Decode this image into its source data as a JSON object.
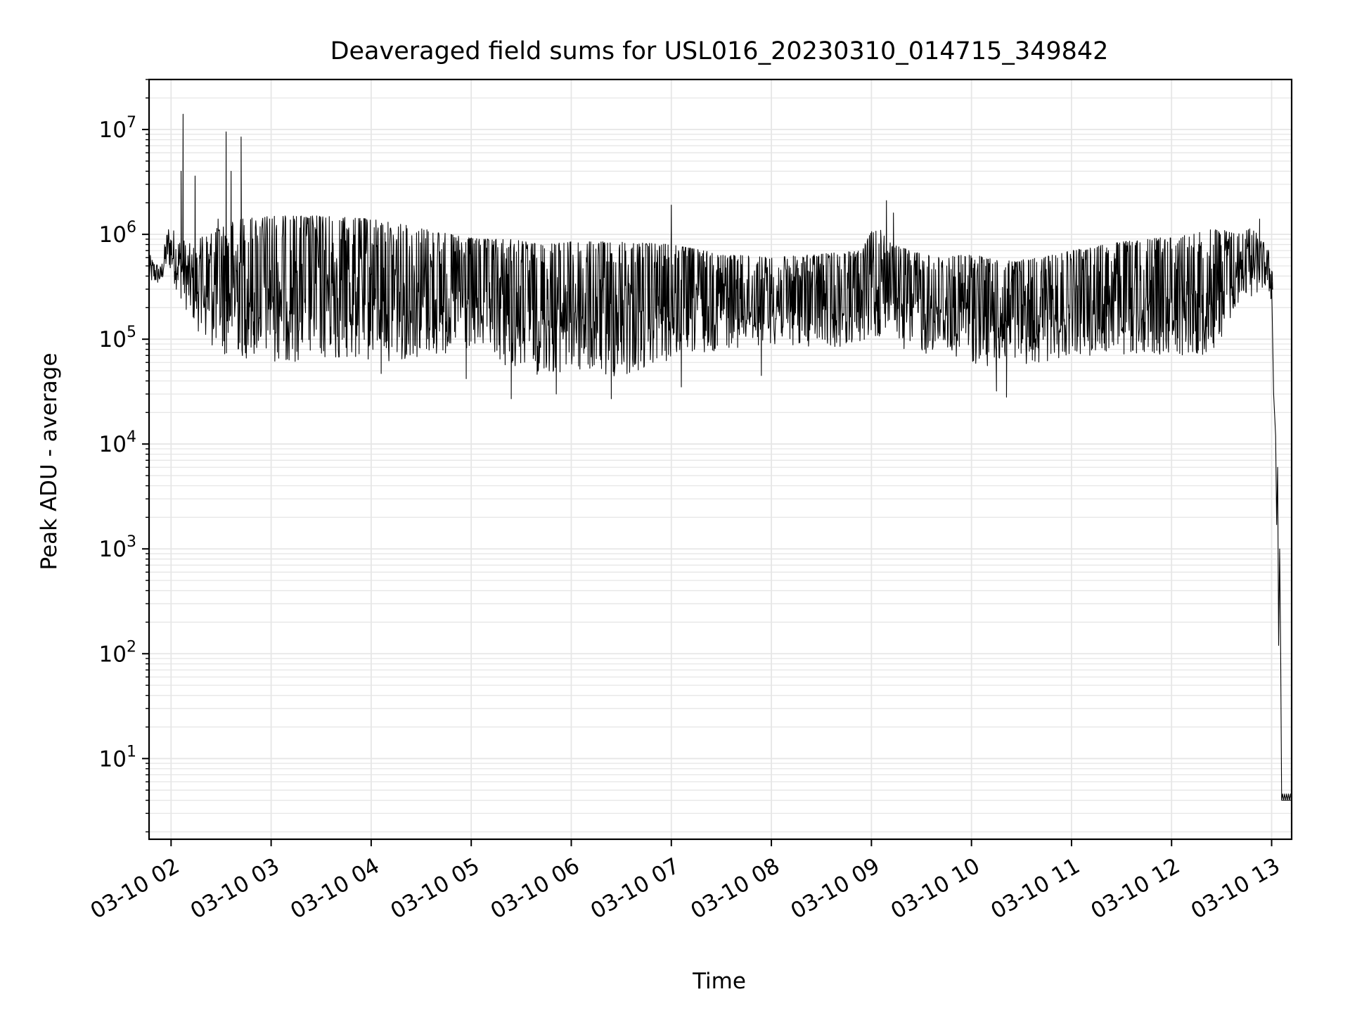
{
  "chart_data": {
    "type": "line",
    "title": "Deaveraged field sums for USL016_20230310_014715_349842",
    "xlabel": "Time",
    "ylabel": "Peak ADU - average",
    "yscale": "log",
    "ylim": [
      1.7,
      30000000
    ],
    "xlim": [
      "03-10 01:47",
      "03-10 13:12"
    ],
    "grid": true,
    "legend": "none",
    "line_color": "#000000",
    "grid_color": "#e6e6e6",
    "x_tick_labels": [
      "03-10 02",
      "03-10 03",
      "03-10 04",
      "03-10 05",
      "03-10 06",
      "03-10 07",
      "03-10 08",
      "03-10 09",
      "03-10 10",
      "03-10 11",
      "03-10 12",
      "03-10 13"
    ],
    "x_tick_hours": [
      2,
      3,
      4,
      5,
      6,
      7,
      8,
      9,
      10,
      11,
      12,
      13
    ],
    "y_tick_labels": [
      {
        "value": 10,
        "mantissa": "10",
        "exponent": "1"
      },
      {
        "value": 100,
        "mantissa": "10",
        "exponent": "2"
      },
      {
        "value": 1000,
        "mantissa": "10",
        "exponent": "3"
      },
      {
        "value": 10000,
        "mantissa": "10",
        "exponent": "4"
      },
      {
        "value": 100000,
        "mantissa": "10",
        "exponent": "5"
      },
      {
        "value": 1000000,
        "mantissa": "10",
        "exponent": "6"
      },
      {
        "value": 10000000,
        "mantissa": "10",
        "exponent": "7"
      }
    ],
    "series": [
      {
        "x_unit": "hours after 03-10 00:00",
        "envelope": {
          "t": [
            1.78,
            1.9,
            1.97,
            2.05,
            2.2,
            2.35,
            2.5,
            2.7,
            3.0,
            3.5,
            4.0,
            4.5,
            4.9,
            5.1,
            5.4,
            5.7,
            6.0,
            6.5,
            7.0,
            7.5,
            8.0,
            8.5,
            8.9,
            9.05,
            9.2,
            9.3,
            9.5,
            9.7,
            10.0,
            10.3,
            10.7,
            11.0,
            11.5,
            12.0,
            12.3,
            12.45,
            12.7,
            12.8,
            12.95,
            13.01
          ],
          "low": [
            330000,
            330000,
            500000,
            300000,
            150000,
            90000,
            70000,
            65000,
            60000,
            60000,
            60000,
            65000,
            70000,
            70000,
            50000,
            45000,
            45000,
            40000,
            60000,
            80000,
            90000,
            80000,
            90000,
            90000,
            150000,
            80000,
            70000,
            70000,
            60000,
            50000,
            60000,
            70000,
            70000,
            70000,
            70000,
            80000,
            230000,
            250000,
            300000,
            200000
          ],
          "high": [
            650000,
            500000,
            1300000,
            1100000,
            800000,
            1000000,
            1200000,
            1400000,
            1500000,
            1500000,
            1400000,
            1150000,
            950000,
            900000,
            900000,
            800000,
            850000,
            850000,
            800000,
            650000,
            600000,
            650000,
            700000,
            1300000,
            800000,
            750000,
            650000,
            600000,
            650000,
            550000,
            600000,
            700000,
            850000,
            950000,
            1050000,
            1150000,
            1000000,
            1200000,
            800000,
            600000
          ]
        },
        "spikes": [
          {
            "t": 2.12,
            "y": 14000000
          },
          {
            "t": 2.1,
            "y": 4000000
          },
          {
            "t": 2.24,
            "y": 3600000
          },
          {
            "t": 2.55,
            "y": 9500000
          },
          {
            "t": 2.6,
            "y": 4000000
          },
          {
            "t": 2.7,
            "y": 8500000
          },
          {
            "t": 2.47,
            "y": 1400000
          },
          {
            "t": 7.0,
            "y": 1900000
          },
          {
            "t": 9.15,
            "y": 2100000
          },
          {
            "t": 9.22,
            "y": 1600000
          },
          {
            "t": 12.88,
            "y": 1400000
          }
        ],
        "dips": [
          {
            "t": 5.4,
            "y": 27000
          },
          {
            "t": 6.4,
            "y": 27000
          },
          {
            "t": 5.85,
            "y": 30000
          },
          {
            "t": 10.35,
            "y": 28000
          },
          {
            "t": 10.25,
            "y": 32000
          },
          {
            "t": 7.1,
            "y": 35000
          },
          {
            "t": 4.1,
            "y": 47000
          },
          {
            "t": 4.95,
            "y": 42000
          },
          {
            "t": 7.9,
            "y": 45000
          }
        ],
        "dropoff": {
          "t": [
            13.0,
            13.02,
            13.04,
            13.05,
            13.06,
            13.07,
            13.08,
            13.09,
            13.1,
            13.12,
            13.2
          ],
          "y": [
            350000,
            30000,
            12000,
            1700,
            6000,
            120,
            1000,
            110,
            4,
            4,
            4
          ]
        }
      }
    ]
  }
}
